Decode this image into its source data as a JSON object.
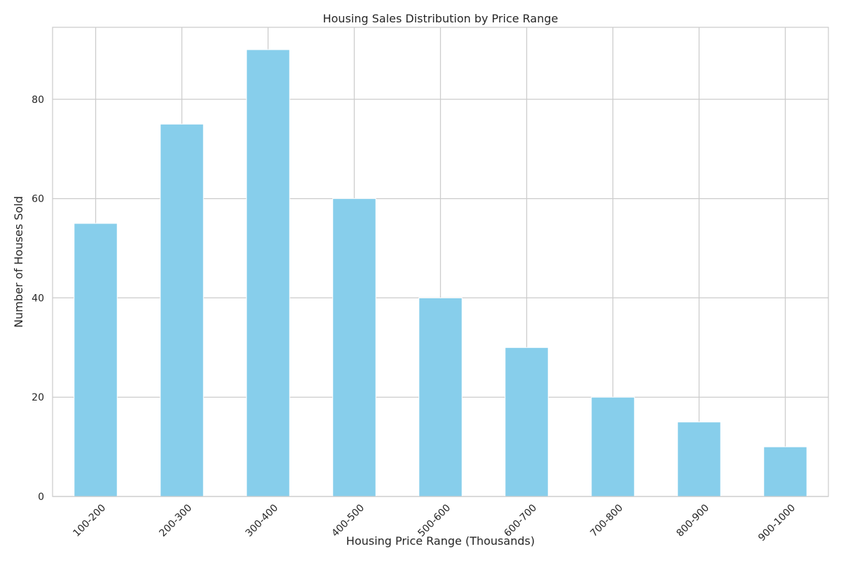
{
  "chart_data": {
    "type": "bar",
    "title": "Housing Sales Distribution by Price Range",
    "xlabel": "Housing Price Range (Thousands)",
    "ylabel": "Number of Houses Sold",
    "categories": [
      "100-200",
      "200-300",
      "300-400",
      "400-500",
      "500-600",
      "600-700",
      "700-800",
      "800-900",
      "900-1000"
    ],
    "values": [
      55,
      75,
      90,
      60,
      40,
      30,
      20,
      15,
      10
    ],
    "ylim": [
      0,
      94.5
    ],
    "yticks": [
      0,
      20,
      40,
      60,
      80
    ],
    "grid": true,
    "bar_color": "#87ceeb",
    "grid_color": "#cccccc",
    "x_tick_rotation": 45
  }
}
